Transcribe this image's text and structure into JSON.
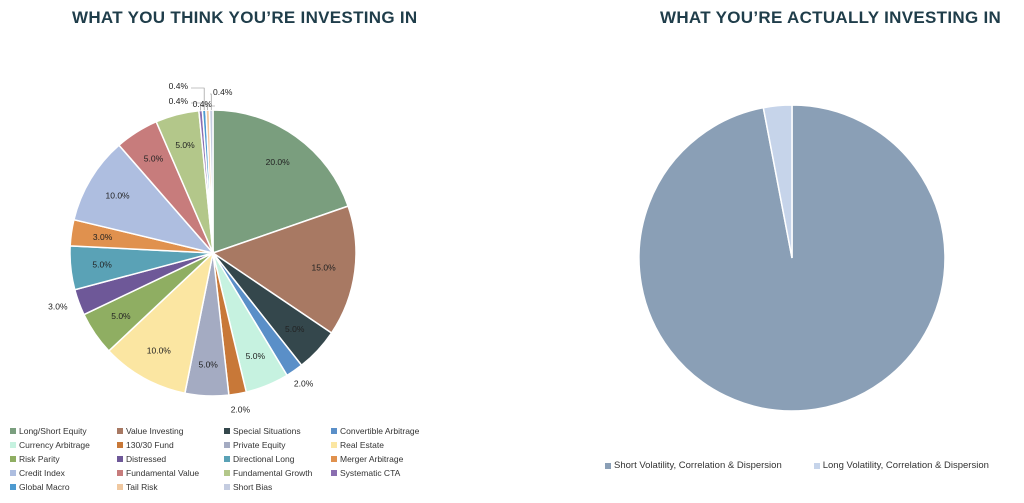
{
  "chart_data": [
    {
      "type": "pie",
      "title": "WHAT YOU THINK YOU’RE INVESTING IN",
      "legend_position": "bottom",
      "slices": [
        {
          "name": "Long/Short Equity",
          "value": 20.0,
          "label": "20.0%",
          "color": "#7a9e7e"
        },
        {
          "name": "Value Investing",
          "value": 15.0,
          "label": "15.0%",
          "color": "#a87963"
        },
        {
          "name": "Special Situations",
          "value": 5.0,
          "label": "5.0%",
          "color": "#34474c"
        },
        {
          "name": "Convertible Arbitrage",
          "value": 2.0,
          "label": "2.0%",
          "color": "#5a8fc8"
        },
        {
          "name": "Currency Arbitrage",
          "value": 5.0,
          "label": "5.0%",
          "color": "#c6f2e0"
        },
        {
          "name": "130/30 Fund",
          "value": 2.0,
          "label": "2.0%",
          "color": "#c87838"
        },
        {
          "name": "Private Equity",
          "value": 5.0,
          "label": "5.0%",
          "color": "#a4abc2"
        },
        {
          "name": "Real Estate",
          "value": 10.0,
          "label": "10.0%",
          "color": "#fbe6a2"
        },
        {
          "name": "Risk Parity",
          "value": 5.0,
          "label": "5.0%",
          "color": "#8fae62"
        },
        {
          "name": "Distressed",
          "value": 3.0,
          "label": "3.0%",
          "color": "#6e5898"
        },
        {
          "name": "Directional Long",
          "value": 5.0,
          "label": "5.0%",
          "color": "#5aa2b6"
        },
        {
          "name": "Merger Arbitrage",
          "value": 3.0,
          "label": "3.0%",
          "color": "#e0914e"
        },
        {
          "name": "Credit Index",
          "value": 10.0,
          "label": "10.0%",
          "color": "#aebee0"
        },
        {
          "name": "Fundamental Value",
          "value": 5.0,
          "label": "5.0%",
          "color": "#c77c7c"
        },
        {
          "name": "Fundamental Growth",
          "value": 5.0,
          "label": "5.0%",
          "color": "#b3c78a"
        },
        {
          "name": "Systematic CTA",
          "value": 0.4,
          "label": "0.4%",
          "color": "#8a6eb0"
        },
        {
          "name": "Global Macro",
          "value": 0.4,
          "label": "0.4%",
          "color": "#4d9ad0"
        },
        {
          "name": "Tail Risk",
          "value": 0.4,
          "label": "0.4%",
          "color": "#f0c8a0"
        },
        {
          "name": "Short Bias",
          "value": 0.4,
          "label": "0.4%",
          "color": "#c4cce0"
        }
      ]
    },
    {
      "type": "pie",
      "title": "WHAT YOU’RE ACTUALLY INVESTING IN",
      "legend_position": "bottom",
      "slices": [
        {
          "name": "Short Volatility, Correlation & Dispersion",
          "value": 97,
          "color": "#8a9fb6"
        },
        {
          "name": "Long Volatility, Correlation & Dispersion",
          "value": 3,
          "color": "#c6d4ea"
        }
      ]
    }
  ]
}
